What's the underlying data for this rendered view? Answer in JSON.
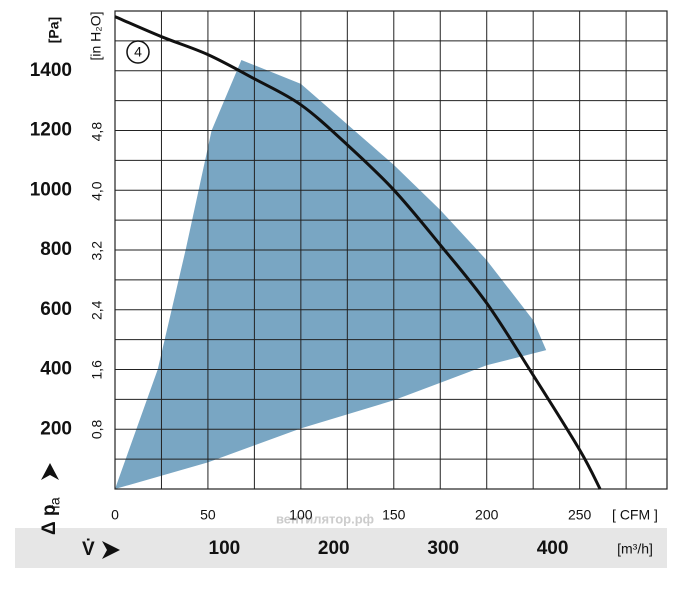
{
  "chart_data": {
    "type": "line",
    "y_unit": "[Pa]",
    "y2_unit": "[in H₂O]",
    "x_unit": "[ CFM ]",
    "x2_unit": "[m³/h]",
    "y_label": "Δ p",
    "y_label_sub": "fa",
    "x_label": "V̇",
    "annotation": "4",
    "watermark": "вентилятор.рф",
    "xlim": [
      0,
      297
    ],
    "xticks": [
      0,
      50,
      100,
      150,
      200,
      250
    ],
    "xminor": [
      25,
      75,
      125,
      175,
      225,
      275
    ],
    "ylim": [
      0,
      1600
    ],
    "yticks": [
      200,
      400,
      600,
      800,
      1000,
      1200,
      1400
    ],
    "yminor": [
      100,
      300,
      500,
      700,
      900,
      1100,
      1300,
      1500
    ],
    "x2lim": [
      0,
      504.6
    ],
    "x2ticks": [
      100,
      200,
      300,
      400
    ],
    "y2lim": [
      0,
      6.42
    ],
    "y2ticks": [
      {
        "value": 0.8,
        "label": "0,8"
      },
      {
        "value": 1.6,
        "label": "1,6"
      },
      {
        "value": 2.4,
        "label": "2,4"
      },
      {
        "value": 3.2,
        "label": "3,2"
      },
      {
        "value": 4.0,
        "label": "4,0"
      },
      {
        "value": 4.8,
        "label": "4,8"
      }
    ],
    "curve": {
      "color": "#111111",
      "x": [
        0,
        25,
        50,
        75,
        100,
        125,
        150,
        175,
        200,
        225,
        250,
        261
      ],
      "y": [
        1581,
        1514,
        1454,
        1373,
        1286,
        1152,
        1001,
        817,
        622,
        381,
        131,
        0
      ]
    },
    "area": {
      "color": "#79a6c3",
      "x": [
        0,
        23,
        38,
        52,
        68,
        100,
        150,
        175,
        200,
        225,
        232,
        200,
        150,
        100,
        50,
        0
      ],
      "y": [
        0,
        400,
        800,
        1200,
        1436,
        1356,
        1085,
        934,
        766,
        565,
        465,
        414,
        297,
        203,
        89,
        0
      ]
    }
  }
}
